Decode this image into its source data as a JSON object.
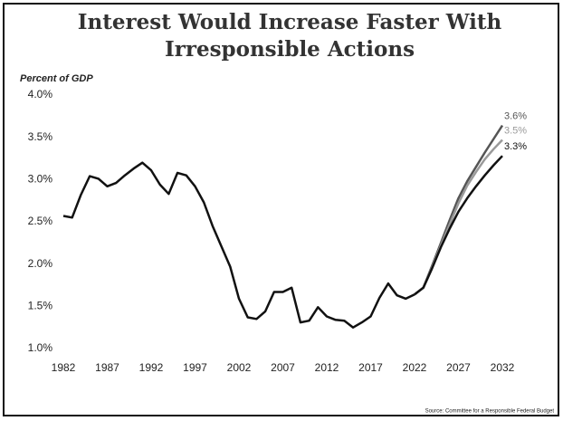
{
  "chart_data": {
    "type": "line",
    "title": [
      "Interest Would Increase Faster With",
      "Irresponsible Actions"
    ],
    "y_label": "Percent of GDP",
    "source": "Source: Committee for a Responsible Federal Budget",
    "x": [
      1982,
      1983,
      1984,
      1985,
      1986,
      1987,
      1988,
      1989,
      1990,
      1991,
      1992,
      1993,
      1994,
      1995,
      1996,
      1997,
      1998,
      1999,
      2000,
      2001,
      2002,
      2003,
      2004,
      2005,
      2006,
      2007,
      2008,
      2009,
      2010,
      2011,
      2012,
      2013,
      2014,
      2015,
      2016,
      2017,
      2018,
      2019,
      2020,
      2021,
      2022,
      2023,
      2024,
      2025,
      2026,
      2027,
      2028,
      2029,
      2030,
      2031,
      2032
    ],
    "series": [
      {
        "color": "#111111",
        "values": [
          2.57,
          2.55,
          2.82,
          3.04,
          3.01,
          2.92,
          2.96,
          3.05,
          3.13,
          3.2,
          3.11,
          2.94,
          2.83,
          3.08,
          3.05,
          2.92,
          2.73,
          2.45,
          2.21,
          1.97,
          1.59,
          1.37,
          1.35,
          1.44,
          1.67,
          1.67,
          1.72,
          1.31,
          1.33,
          1.49,
          1.38,
          1.34,
          1.33,
          1.25,
          1.31,
          1.38,
          1.6,
          1.77,
          1.63,
          1.59,
          1.64,
          null,
          null,
          null,
          null,
          null,
          null,
          null,
          null,
          null,
          null
        ]
      },
      {
        "color": "#555555",
        "values": [
          null,
          null,
          null,
          null,
          null,
          null,
          null,
          null,
          null,
          null,
          null,
          null,
          null,
          null,
          null,
          null,
          null,
          null,
          null,
          null,
          null,
          null,
          null,
          null,
          null,
          null,
          null,
          null,
          null,
          null,
          null,
          null,
          null,
          null,
          null,
          null,
          null,
          null,
          null,
          null,
          1.64,
          1.72,
          1.98,
          2.25,
          2.52,
          2.78,
          2.98,
          3.15,
          3.32,
          3.48,
          3.64
        ],
        "value_labels": [
          null,
          null,
          null,
          null,
          null,
          null,
          null,
          null,
          null,
          null,
          null,
          null,
          null,
          null,
          null,
          null,
          null,
          null,
          null,
          null,
          null,
          null,
          null,
          null,
          null,
          null,
          null,
          null,
          null,
          null,
          null,
          null,
          null,
          null,
          null,
          null,
          null,
          null,
          null,
          null,
          null,
          null,
          null,
          null,
          null,
          null,
          null,
          null,
          null,
          null,
          "3.6%"
        ]
      },
      {
        "color": "#9a9a9a",
        "values": [
          null,
          null,
          null,
          null,
          null,
          null,
          null,
          null,
          null,
          null,
          null,
          null,
          null,
          null,
          null,
          null,
          null,
          null,
          null,
          null,
          null,
          null,
          null,
          null,
          null,
          null,
          null,
          null,
          null,
          null,
          null,
          null,
          null,
          null,
          null,
          null,
          null,
          null,
          null,
          null,
          1.64,
          1.72,
          1.96,
          2.22,
          2.47,
          2.72,
          2.93,
          3.09,
          3.24,
          3.36,
          3.47
        ],
        "value_labels": [
          null,
          null,
          null,
          null,
          null,
          null,
          null,
          null,
          null,
          null,
          null,
          null,
          null,
          null,
          null,
          null,
          null,
          null,
          null,
          null,
          null,
          null,
          null,
          null,
          null,
          null,
          null,
          null,
          null,
          null,
          null,
          null,
          null,
          null,
          null,
          null,
          null,
          null,
          null,
          null,
          null,
          null,
          null,
          null,
          null,
          null,
          null,
          null,
          null,
          null,
          "3.5%"
        ]
      },
      {
        "color": "#111111",
        "values": [
          null,
          null,
          null,
          null,
          null,
          null,
          null,
          null,
          null,
          null,
          null,
          null,
          null,
          null,
          null,
          null,
          null,
          null,
          null,
          null,
          null,
          null,
          null,
          null,
          null,
          null,
          null,
          null,
          null,
          null,
          null,
          null,
          null,
          null,
          null,
          null,
          null,
          null,
          null,
          null,
          1.64,
          1.72,
          1.95,
          2.2,
          2.42,
          2.62,
          2.78,
          2.92,
          3.05,
          3.17,
          3.28
        ],
        "value_labels": [
          null,
          null,
          null,
          null,
          null,
          null,
          null,
          null,
          null,
          null,
          null,
          null,
          null,
          null,
          null,
          null,
          null,
          null,
          null,
          null,
          null,
          null,
          null,
          null,
          null,
          null,
          null,
          null,
          null,
          null,
          null,
          null,
          null,
          null,
          null,
          null,
          null,
          null,
          null,
          null,
          null,
          null,
          null,
          null,
          null,
          null,
          null,
          null,
          null,
          null,
          "3.3%"
        ]
      }
    ],
    "xlim": [
      1982,
      2032
    ],
    "xticks": [
      1982,
      1987,
      1992,
      1997,
      2002,
      2007,
      2012,
      2017,
      2022,
      2027,
      2032
    ],
    "ylim": [
      1,
      4
    ],
    "yticks": [
      {
        "value": 1,
        "label": "1.0%"
      },
      {
        "value": 1.5,
        "label": "1.5%"
      },
      {
        "value": 2,
        "label": "2.0%"
      },
      {
        "value": 2.5,
        "label": "2.5%"
      },
      {
        "value": 3,
        "label": "3.0%"
      },
      {
        "value": 3.5,
        "label": "3.5%"
      },
      {
        "value": 4,
        "label": "4.0%"
      }
    ],
    "grid": false
  }
}
